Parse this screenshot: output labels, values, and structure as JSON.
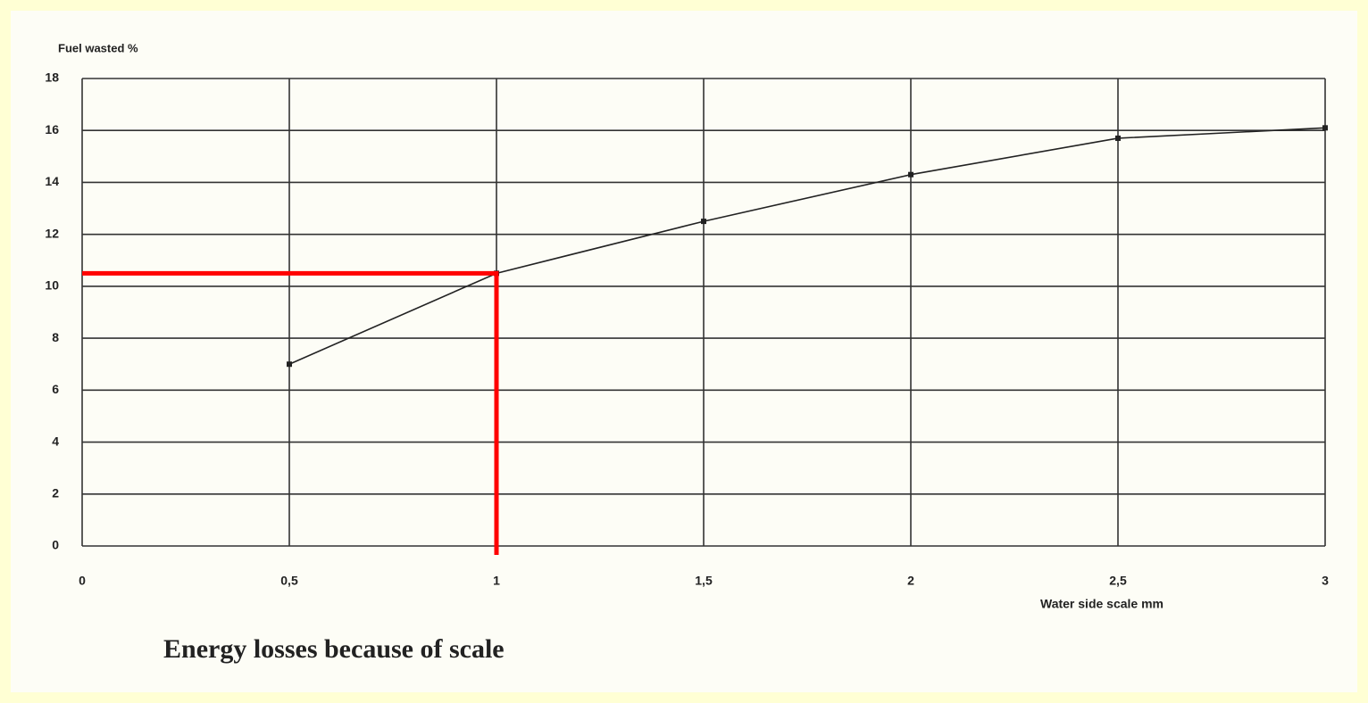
{
  "chart_data": {
    "type": "line",
    "title": "Energy losses because of scale",
    "y_label": "Fuel wasted %",
    "x_label": "Water side scale mm",
    "x": [
      0.5,
      1,
      1.5,
      2,
      2.5,
      3
    ],
    "series": [
      {
        "color": "#222222",
        "values": [
          7,
          10.5,
          12.5,
          14.3,
          15.7,
          16.1
        ]
      }
    ],
    "highlight_color": "#ff0000",
    "xlim": [
      0,
      3
    ],
    "xticks": [
      0,
      {
        "value": 0.5,
        "label": "0,5"
      },
      1,
      {
        "value": 1.5,
        "label": "1,5"
      },
      2,
      {
        "value": 2.5,
        "label": "2,5"
      },
      3
    ],
    "ylim": [
      0,
      18
    ],
    "yticks": [
      0,
      2,
      4,
      6,
      8,
      10,
      12,
      14,
      16,
      18
    ],
    "grid": true
  }
}
